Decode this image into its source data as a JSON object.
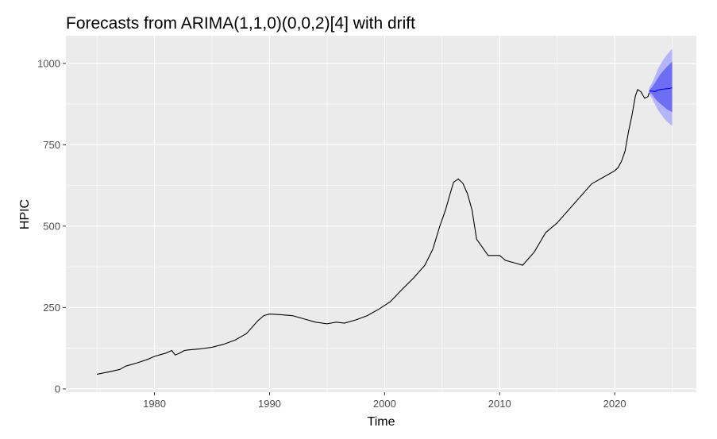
{
  "chart_data": {
    "type": "line",
    "title": "Forecasts from ARIMA(1,1,0)(0,0,2)[4] with drift",
    "xlabel": "Time",
    "ylabel": "HPIC",
    "xlim": [
      1972.3,
      2027.1
    ],
    "ylim": [
      -10,
      1085
    ],
    "x_ticks": [
      1980,
      1990,
      2000,
      2010,
      2020
    ],
    "x_tick_labels": [
      "1980",
      "1990",
      "2000",
      "2010",
      "2020"
    ],
    "y_ticks": [
      0,
      250,
      500,
      750,
      1000
    ],
    "y_tick_labels": [
      "0",
      "250",
      "500",
      "750",
      "1000"
    ],
    "grid": true,
    "legend": "none",
    "colors": {
      "panel": "#ebebeb",
      "grid": "#ffffff",
      "series": "#000000",
      "forecast_line": "#0000ff",
      "pi80": "#6e6ef5",
      "pi95": "#b4b4fa"
    },
    "series": [
      {
        "x": [
          1975.0,
          1976.0,
          1977.0,
          1977.5,
          1978.5,
          1979.5,
          1980.0,
          1980.5,
          1981.0,
          1981.5,
          1981.8,
          1982.2,
          1982.6,
          1983.0,
          1984.0,
          1985.0,
          1986.0,
          1987.0,
          1988.0,
          1989.0,
          1989.5,
          1990.0,
          1991.0,
          1992.0,
          1993.0,
          1994.0,
          1995.0,
          1995.8,
          1996.5,
          1997.5,
          1998.5,
          1999.5,
          2000.5,
          2001.5,
          2002.5,
          2003.5,
          2004.2,
          2004.8,
          2005.3,
          2005.7,
          2006.0,
          2006.4,
          2006.8,
          2007.2,
          2007.6,
          2008.0,
          2008.3,
          2008.6,
          2009.0,
          2009.4,
          2010.0,
          2010.5,
          2011.0,
          2011.5,
          2012.0,
          2012.5,
          2013.0,
          2013.5,
          2014.0,
          2014.5,
          2015.0,
          2016.0,
          2017.0,
          2018.0,
          2019.0,
          2019.5,
          2020.0,
          2020.3,
          2020.6,
          2020.9,
          2021.2,
          2021.5,
          2021.8,
          2022.0,
          2022.3,
          2022.6,
          2022.9,
          2023.0
        ],
        "values": [
          45,
          52,
          60,
          70,
          80,
          92,
          100,
          105,
          110,
          118,
          104,
          110,
          118,
          120,
          123,
          128,
          137,
          150,
          170,
          210,
          225,
          230,
          228,
          225,
          215,
          205,
          200,
          205,
          202,
          212,
          225,
          245,
          268,
          305,
          340,
          380,
          430,
          500,
          550,
          600,
          635,
          645,
          632,
          600,
          550,
          460,
          445,
          430,
          410,
          410,
          410,
          395,
          390,
          385,
          380,
          400,
          420,
          450,
          480,
          495,
          510,
          550,
          590,
          630,
          650,
          660,
          670,
          680,
          700,
          730,
          790,
          840,
          900,
          920,
          912,
          893,
          898,
          910
        ]
      }
    ],
    "forecast": {
      "x": [
        2023.0,
        2023.25,
        2023.5,
        2023.75,
        2024.0,
        2024.25,
        2024.5,
        2024.75,
        2025.0
      ],
      "mean": [
        915,
        915,
        913,
        918,
        920,
        921,
        922,
        923,
        925
      ],
      "lo80": [
        912,
        905,
        893,
        883,
        875,
        868,
        860,
        855,
        850
      ],
      "hi80": [
        918,
        927,
        940,
        955,
        968,
        978,
        988,
        997,
        1005
      ],
      "lo95": [
        905,
        893,
        875,
        858,
        845,
        833,
        823,
        815,
        808
      ],
      "hi95": [
        925,
        940,
        960,
        982,
        998,
        1012,
        1025,
        1035,
        1045
      ]
    }
  }
}
